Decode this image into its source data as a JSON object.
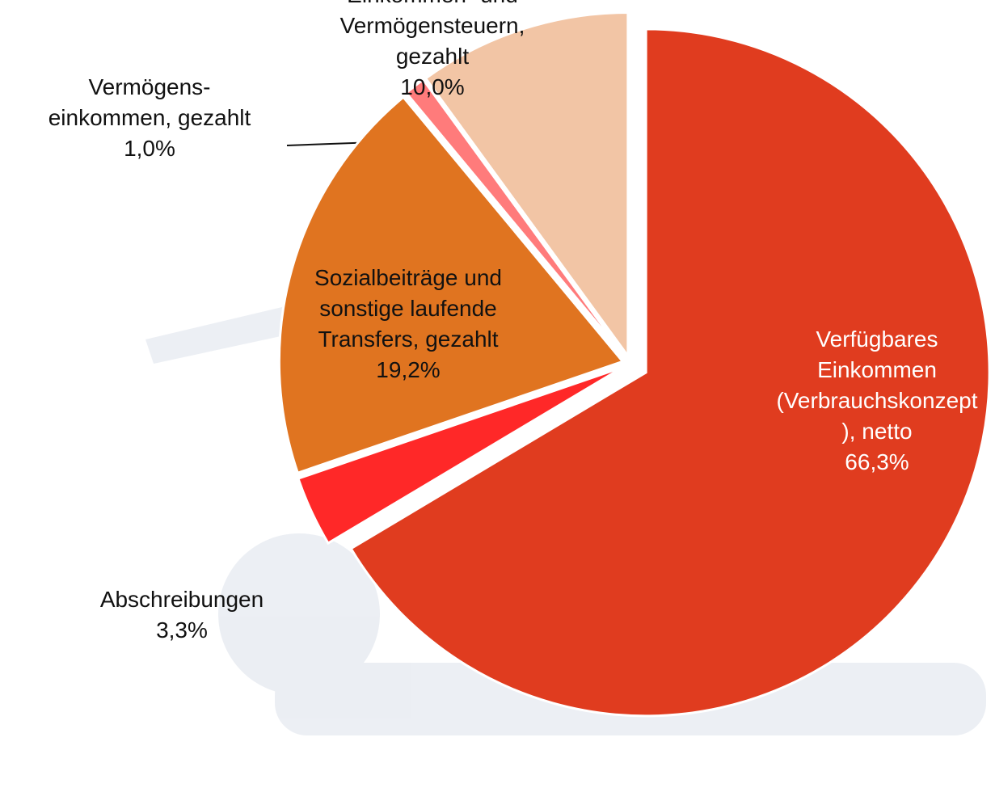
{
  "chart_data": {
    "type": "pie",
    "categories": [
      "Verfügbares\nEinkommen\n(Verbrauchskonzept\n), netto",
      "Abschreibungen",
      "Sozialbeiträge und\nsonstige laufende\nTransfers, gezahlt",
      "Vermögens-\neinkommen, gezahlt",
      "Einkommen- und\nVermögensteuern,\ngezahlt"
    ],
    "values": [
      66.3,
      3.3,
      19.2,
      1.0,
      10.0
    ],
    "value_labels": [
      "66,3%",
      "3,3%",
      "19,2%",
      "1,0%",
      "10,0%"
    ],
    "colors": [
      "#e03c1f",
      "#ff2828",
      "#e07420",
      "#ff7b7b",
      "#f2c5a5"
    ]
  }
}
